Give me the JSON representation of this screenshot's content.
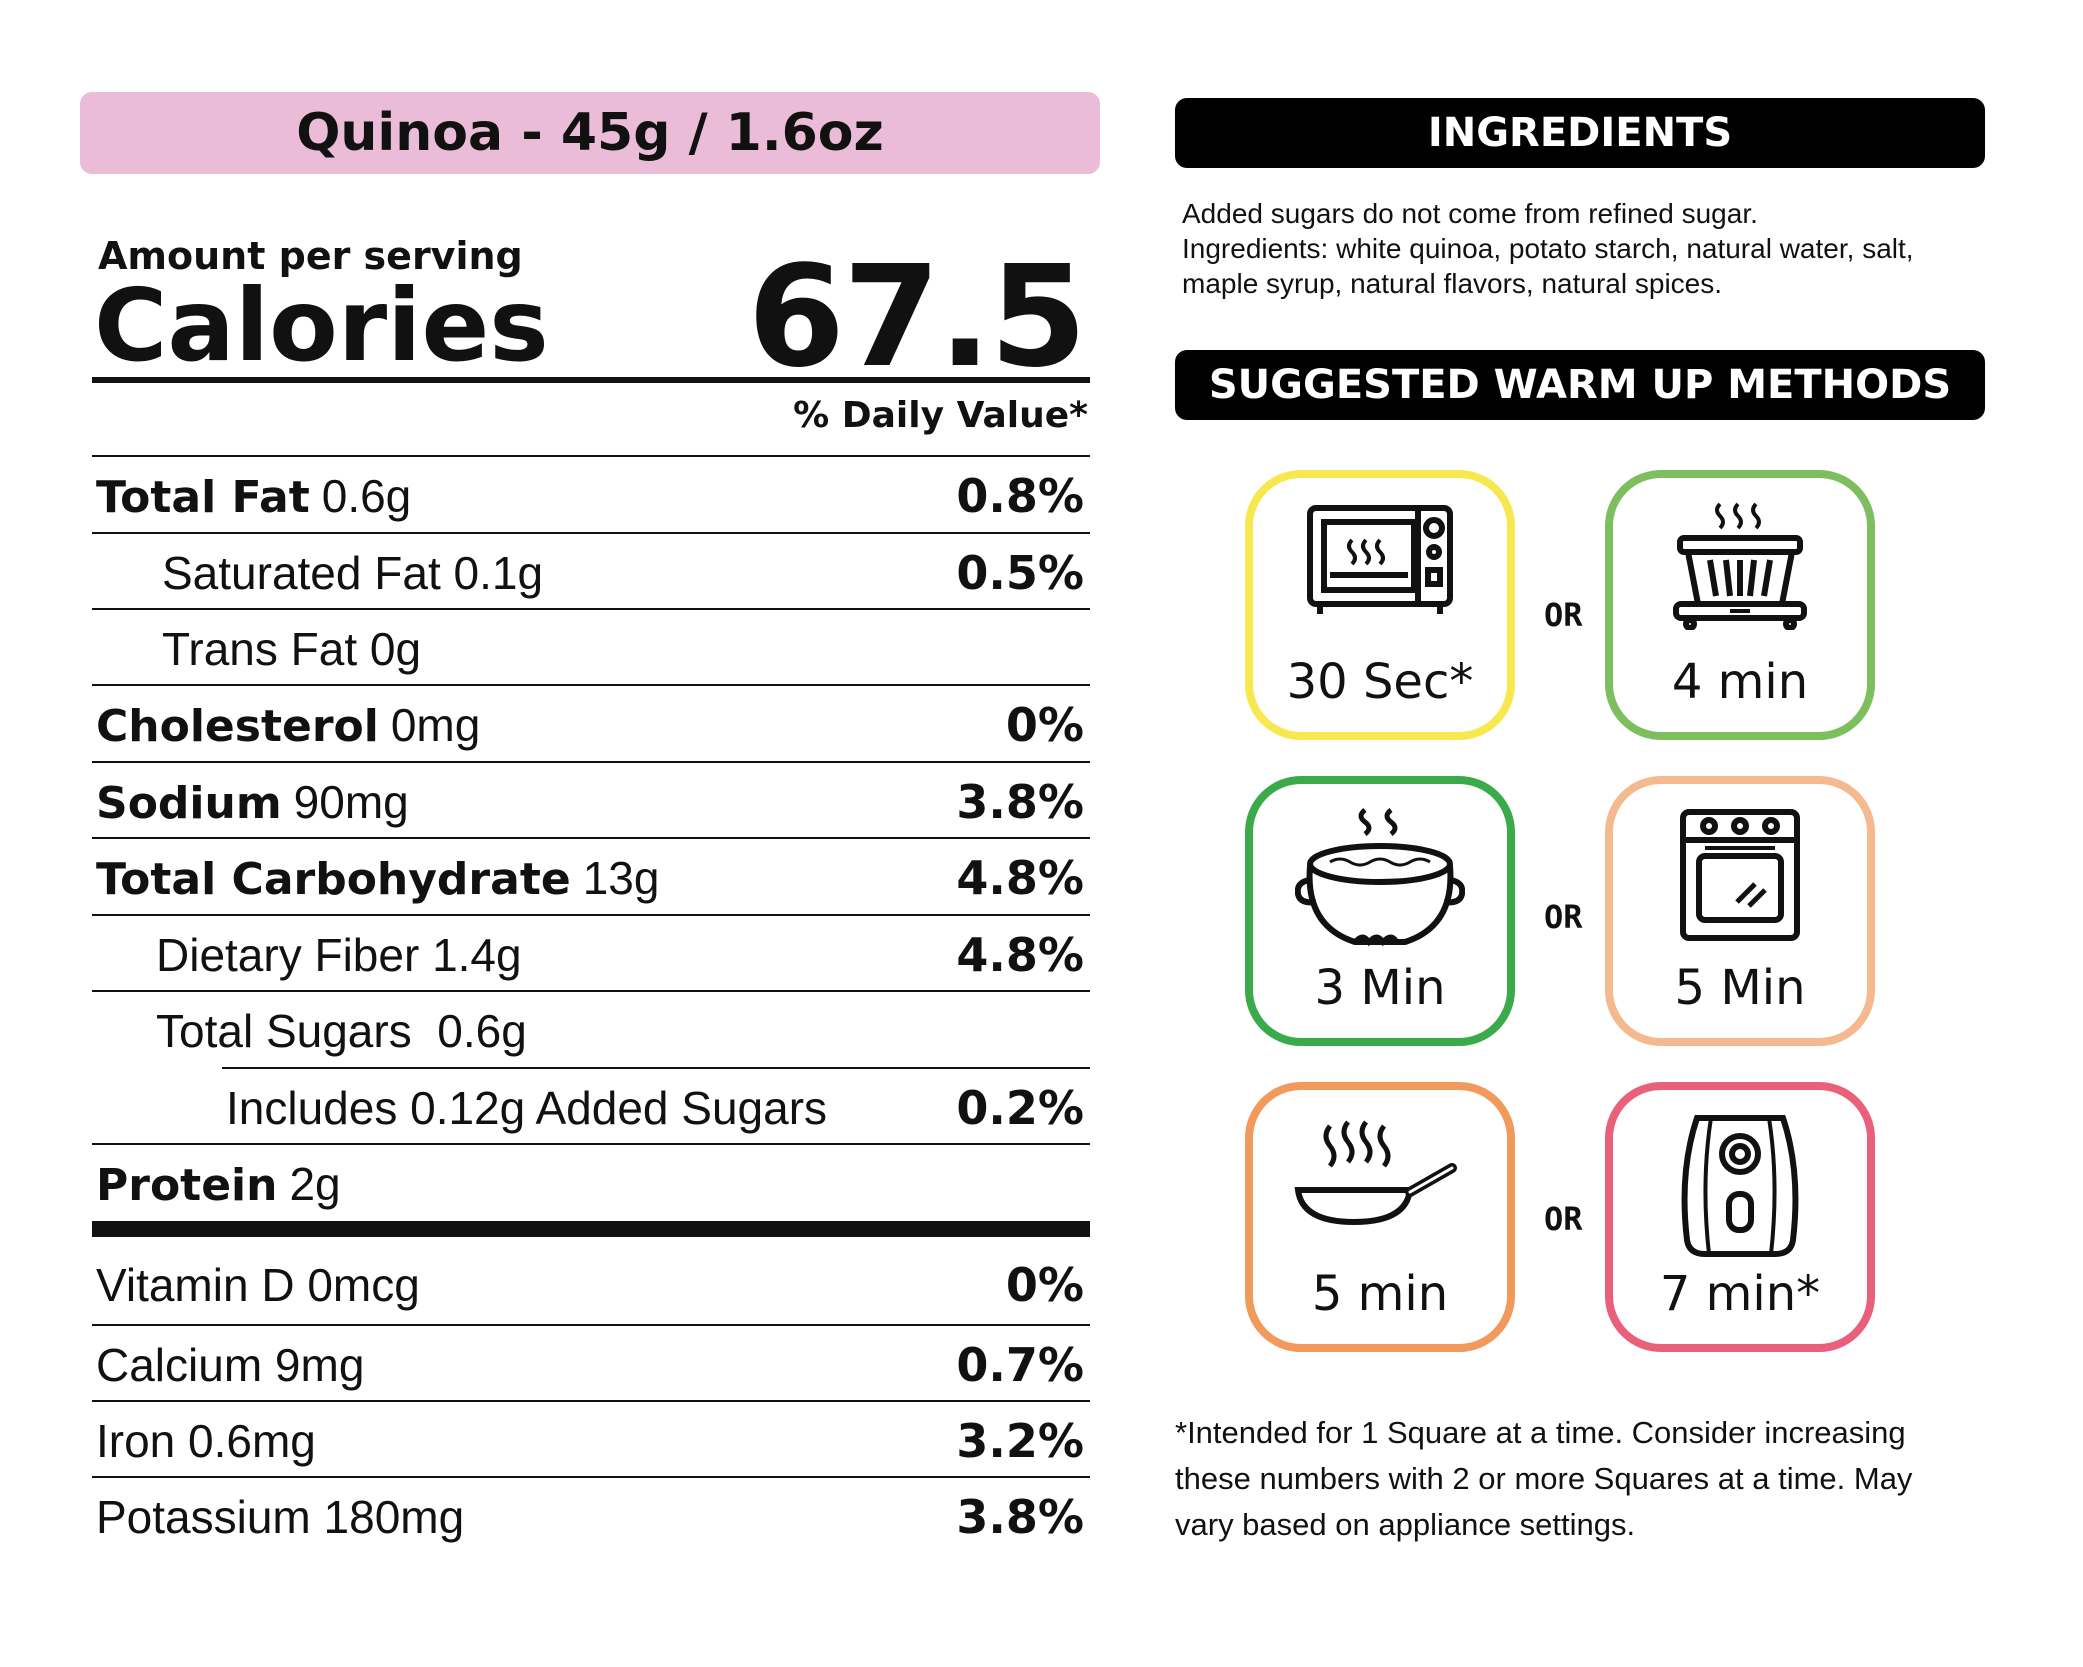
{
  "product_title": "Quinoa - 45g / 1.6oz",
  "amount_per_serving": "Amount per serving",
  "calories_label": "Calories",
  "calories_value": "67.5",
  "daily_value_label": "% Daily Value*",
  "nutrients": [
    {
      "name": "Total Fat",
      "amount": "0.6g",
      "dv": "0.8%"
    },
    {
      "name": "",
      "amount": "Saturated Fat 0.1g",
      "dv": "0.5%"
    },
    {
      "name": "",
      "amount": "Trans Fat 0g",
      "dv": ""
    },
    {
      "name": "Cholesterol",
      "amount": "0mg",
      "dv": "0%"
    },
    {
      "name": "Sodium",
      "amount": "90mg",
      "dv": "3.8%"
    },
    {
      "name": "Total Carbohydrate",
      "amount": "13g",
      "dv": "4.8%"
    },
    {
      "name": "",
      "amount": "Dietary Fiber 1.4g",
      "dv": "4.8%"
    },
    {
      "name": "",
      "amount": "Total Sugars  0.6g",
      "dv": ""
    },
    {
      "name": "",
      "amount": "Includes 0.12g Added Sugars",
      "dv": "0.2%"
    },
    {
      "name": "Protein",
      "amount": "2g",
      "dv": ""
    }
  ],
  "vitamins": [
    {
      "label": "Vitamin D 0mcg",
      "dv": "0%"
    },
    {
      "label": "Calcium 9mg",
      "dv": "0.7%"
    },
    {
      "label": "Iron 0.6mg",
      "dv": "3.2%"
    },
    {
      "label": "Potassium 180mg",
      "dv": "3.8%"
    }
  ],
  "ingredients_heading": "INGREDIENTS",
  "ingredients_lines": [
    "Added sugars do not come from refined sugar.",
    "Ingredients: white quinoa, potato starch, natural water, salt,",
    "maple syrup, natural flavors, natural spices."
  ],
  "warmup_heading": "SUGGESTED WARM UP METHODS",
  "or_label": "OR",
  "methods": [
    {
      "icon": "microwave-icon",
      "time": "30 Sec*",
      "color": "#f7e84f"
    },
    {
      "icon": "steamer-icon",
      "time": "4 min",
      "color": "#7dbf5e"
    },
    {
      "icon": "pot-icon",
      "time": "3 Min",
      "color": "#3aaa4a"
    },
    {
      "icon": "oven-icon",
      "time": "5 Min",
      "color": "#f4b98e"
    },
    {
      "icon": "frying-pan-icon",
      "time": "5 min",
      "color": "#f19a5b"
    },
    {
      "icon": "air-fryer-icon",
      "time": "7 min*",
      "color": "#e9607a"
    }
  ],
  "footnote_lines": [
    "*Intended for 1 Square at a time. Consider increasing",
    "these numbers with 2 or more Squares at a time. May",
    "vary based on appliance settings."
  ],
  "colors": {
    "title_pill": "#ebbcd8",
    "heading_bar": "#000000"
  }
}
